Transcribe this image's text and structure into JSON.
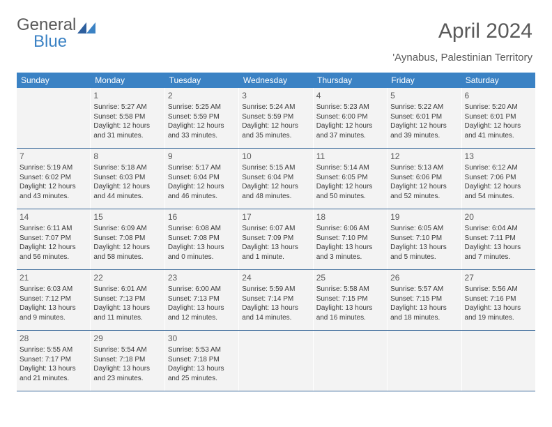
{
  "logo": {
    "text1": "General",
    "text2": "Blue"
  },
  "header": {
    "month_year": "April 2024",
    "location": "'Aynabus, Palestinian Territory"
  },
  "colors": {
    "header_bg": "#3b82c4",
    "header_text": "#ffffff",
    "cell_bg": "#f3f3f3",
    "border": "#3b6a9a",
    "body_text": "#3a3a3a",
    "title_text": "#5a5a5a"
  },
  "day_names": [
    "Sunday",
    "Monday",
    "Tuesday",
    "Wednesday",
    "Thursday",
    "Friday",
    "Saturday"
  ],
  "weeks": [
    [
      {
        "day": "",
        "sunrise": "",
        "sunset": "",
        "daylight1": "",
        "daylight2": ""
      },
      {
        "day": "1",
        "sunrise": "Sunrise: 5:27 AM",
        "sunset": "Sunset: 5:58 PM",
        "daylight1": "Daylight: 12 hours",
        "daylight2": "and 31 minutes."
      },
      {
        "day": "2",
        "sunrise": "Sunrise: 5:25 AM",
        "sunset": "Sunset: 5:59 PM",
        "daylight1": "Daylight: 12 hours",
        "daylight2": "and 33 minutes."
      },
      {
        "day": "3",
        "sunrise": "Sunrise: 5:24 AM",
        "sunset": "Sunset: 5:59 PM",
        "daylight1": "Daylight: 12 hours",
        "daylight2": "and 35 minutes."
      },
      {
        "day": "4",
        "sunrise": "Sunrise: 5:23 AM",
        "sunset": "Sunset: 6:00 PM",
        "daylight1": "Daylight: 12 hours",
        "daylight2": "and 37 minutes."
      },
      {
        "day": "5",
        "sunrise": "Sunrise: 5:22 AM",
        "sunset": "Sunset: 6:01 PM",
        "daylight1": "Daylight: 12 hours",
        "daylight2": "and 39 minutes."
      },
      {
        "day": "6",
        "sunrise": "Sunrise: 5:20 AM",
        "sunset": "Sunset: 6:01 PM",
        "daylight1": "Daylight: 12 hours",
        "daylight2": "and 41 minutes."
      }
    ],
    [
      {
        "day": "7",
        "sunrise": "Sunrise: 5:19 AM",
        "sunset": "Sunset: 6:02 PM",
        "daylight1": "Daylight: 12 hours",
        "daylight2": "and 43 minutes."
      },
      {
        "day": "8",
        "sunrise": "Sunrise: 5:18 AM",
        "sunset": "Sunset: 6:03 PM",
        "daylight1": "Daylight: 12 hours",
        "daylight2": "and 44 minutes."
      },
      {
        "day": "9",
        "sunrise": "Sunrise: 5:17 AM",
        "sunset": "Sunset: 6:04 PM",
        "daylight1": "Daylight: 12 hours",
        "daylight2": "and 46 minutes."
      },
      {
        "day": "10",
        "sunrise": "Sunrise: 5:15 AM",
        "sunset": "Sunset: 6:04 PM",
        "daylight1": "Daylight: 12 hours",
        "daylight2": "and 48 minutes."
      },
      {
        "day": "11",
        "sunrise": "Sunrise: 5:14 AM",
        "sunset": "Sunset: 6:05 PM",
        "daylight1": "Daylight: 12 hours",
        "daylight2": "and 50 minutes."
      },
      {
        "day": "12",
        "sunrise": "Sunrise: 5:13 AM",
        "sunset": "Sunset: 6:06 PM",
        "daylight1": "Daylight: 12 hours",
        "daylight2": "and 52 minutes."
      },
      {
        "day": "13",
        "sunrise": "Sunrise: 6:12 AM",
        "sunset": "Sunset: 7:06 PM",
        "daylight1": "Daylight: 12 hours",
        "daylight2": "and 54 minutes."
      }
    ],
    [
      {
        "day": "14",
        "sunrise": "Sunrise: 6:11 AM",
        "sunset": "Sunset: 7:07 PM",
        "daylight1": "Daylight: 12 hours",
        "daylight2": "and 56 minutes."
      },
      {
        "day": "15",
        "sunrise": "Sunrise: 6:09 AM",
        "sunset": "Sunset: 7:08 PM",
        "daylight1": "Daylight: 12 hours",
        "daylight2": "and 58 minutes."
      },
      {
        "day": "16",
        "sunrise": "Sunrise: 6:08 AM",
        "sunset": "Sunset: 7:08 PM",
        "daylight1": "Daylight: 13 hours",
        "daylight2": "and 0 minutes."
      },
      {
        "day": "17",
        "sunrise": "Sunrise: 6:07 AM",
        "sunset": "Sunset: 7:09 PM",
        "daylight1": "Daylight: 13 hours",
        "daylight2": "and 1 minute."
      },
      {
        "day": "18",
        "sunrise": "Sunrise: 6:06 AM",
        "sunset": "Sunset: 7:10 PM",
        "daylight1": "Daylight: 13 hours",
        "daylight2": "and 3 minutes."
      },
      {
        "day": "19",
        "sunrise": "Sunrise: 6:05 AM",
        "sunset": "Sunset: 7:10 PM",
        "daylight1": "Daylight: 13 hours",
        "daylight2": "and 5 minutes."
      },
      {
        "day": "20",
        "sunrise": "Sunrise: 6:04 AM",
        "sunset": "Sunset: 7:11 PM",
        "daylight1": "Daylight: 13 hours",
        "daylight2": "and 7 minutes."
      }
    ],
    [
      {
        "day": "21",
        "sunrise": "Sunrise: 6:03 AM",
        "sunset": "Sunset: 7:12 PM",
        "daylight1": "Daylight: 13 hours",
        "daylight2": "and 9 minutes."
      },
      {
        "day": "22",
        "sunrise": "Sunrise: 6:01 AM",
        "sunset": "Sunset: 7:13 PM",
        "daylight1": "Daylight: 13 hours",
        "daylight2": "and 11 minutes."
      },
      {
        "day": "23",
        "sunrise": "Sunrise: 6:00 AM",
        "sunset": "Sunset: 7:13 PM",
        "daylight1": "Daylight: 13 hours",
        "daylight2": "and 12 minutes."
      },
      {
        "day": "24",
        "sunrise": "Sunrise: 5:59 AM",
        "sunset": "Sunset: 7:14 PM",
        "daylight1": "Daylight: 13 hours",
        "daylight2": "and 14 minutes."
      },
      {
        "day": "25",
        "sunrise": "Sunrise: 5:58 AM",
        "sunset": "Sunset: 7:15 PM",
        "daylight1": "Daylight: 13 hours",
        "daylight2": "and 16 minutes."
      },
      {
        "day": "26",
        "sunrise": "Sunrise: 5:57 AM",
        "sunset": "Sunset: 7:15 PM",
        "daylight1": "Daylight: 13 hours",
        "daylight2": "and 18 minutes."
      },
      {
        "day": "27",
        "sunrise": "Sunrise: 5:56 AM",
        "sunset": "Sunset: 7:16 PM",
        "daylight1": "Daylight: 13 hours",
        "daylight2": "and 19 minutes."
      }
    ],
    [
      {
        "day": "28",
        "sunrise": "Sunrise: 5:55 AM",
        "sunset": "Sunset: 7:17 PM",
        "daylight1": "Daylight: 13 hours",
        "daylight2": "and 21 minutes."
      },
      {
        "day": "29",
        "sunrise": "Sunrise: 5:54 AM",
        "sunset": "Sunset: 7:18 PM",
        "daylight1": "Daylight: 13 hours",
        "daylight2": "and 23 minutes."
      },
      {
        "day": "30",
        "sunrise": "Sunrise: 5:53 AM",
        "sunset": "Sunset: 7:18 PM",
        "daylight1": "Daylight: 13 hours",
        "daylight2": "and 25 minutes."
      },
      {
        "day": "",
        "sunrise": "",
        "sunset": "",
        "daylight1": "",
        "daylight2": ""
      },
      {
        "day": "",
        "sunrise": "",
        "sunset": "",
        "daylight1": "",
        "daylight2": ""
      },
      {
        "day": "",
        "sunrise": "",
        "sunset": "",
        "daylight1": "",
        "daylight2": ""
      },
      {
        "day": "",
        "sunrise": "",
        "sunset": "",
        "daylight1": "",
        "daylight2": ""
      }
    ]
  ]
}
